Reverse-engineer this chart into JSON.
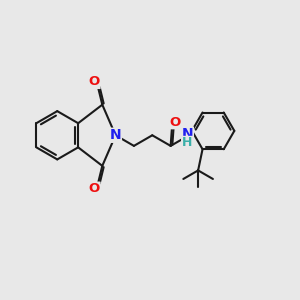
{
  "background_color": "#e8e8e8",
  "bond_color": "#1a1a1a",
  "bond_width": 1.5,
  "dbo": 0.06,
  "atom_colors": {
    "N": "#2020ee",
    "O": "#ee1010",
    "H": "#3aafa9",
    "C": "#1a1a1a"
  },
  "font_size_atom": 9.5,
  "fig_size": [
    3.0,
    3.0
  ],
  "dpi": 100,
  "xlim": [
    0,
    10
  ],
  "ylim": [
    0,
    10
  ]
}
